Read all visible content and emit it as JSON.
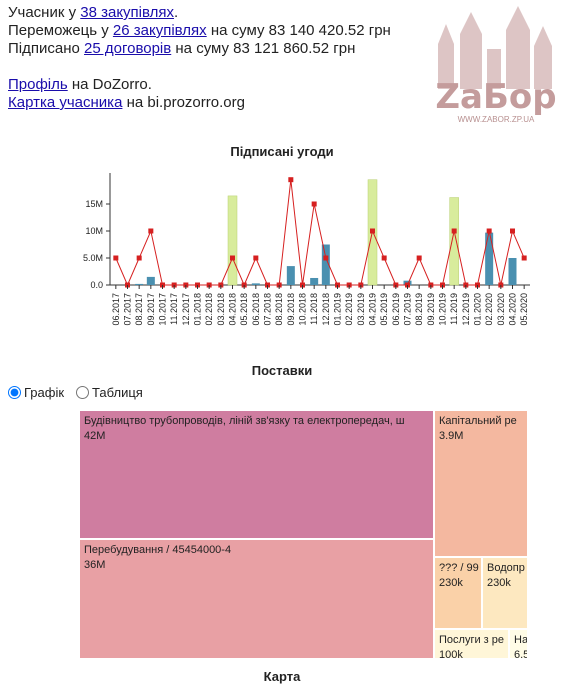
{
  "info": {
    "line1_prefix": "Учасник у ",
    "line1_link": "38 закупівлях",
    "line1_suffix": ".",
    "line2_prefix": "Переможець у ",
    "line2_link": "26 закупівлях",
    "line2_suffix": " на суму 83 140 420.52 грн",
    "line3_prefix": "Підписано ",
    "line3_link": "25 договорів",
    "line3_suffix": " на суму 83 121 860.52 грн",
    "line4_link": "Профіль",
    "line4_suffix": " на DoZorro.",
    "line5_link": "Картка учасника",
    "line5_suffix": " на bi.prozorro.org"
  },
  "logo": {
    "text": "ZaБор",
    "url_text": "WWW.ZABOR.ZP.UA",
    "color": "#c9a9a9"
  },
  "chart_title": "Підписані угоди",
  "chart_data": {
    "type": "bar",
    "categories": [
      "06.2017",
      "07.2017",
      "08.2017",
      "09.2017",
      "10.2017",
      "11.2017",
      "12.2017",
      "01.2018",
      "02.2018",
      "03.2018",
      "04.2018",
      "05.2018",
      "06.2018",
      "07.2018",
      "08.2018",
      "09.2018",
      "10.2018",
      "11.2018",
      "12.2018",
      "01.2019",
      "02.2019",
      "03.2019",
      "04.2019",
      "05.2019",
      "06.2019",
      "07.2019",
      "08.2019",
      "09.2019",
      "10.2019",
      "11.2019",
      "12.2019",
      "01.2020",
      "02.2020",
      "03.2020",
      "04.2020",
      "05.2020"
    ],
    "bar_values": [
      0,
      0,
      0.2,
      1.5,
      0,
      0,
      0,
      0,
      0,
      0,
      0,
      0,
      0.3,
      0,
      0,
      3.5,
      0,
      1.3,
      7.5,
      0,
      0,
      0,
      0,
      0,
      0,
      0.8,
      0,
      0,
      0,
      0,
      0,
      0,
      9.7,
      0,
      5,
      0
    ],
    "highlight_values": [
      0,
      0,
      0,
      0,
      0,
      0,
      0,
      0,
      0,
      0,
      16.5,
      0,
      0,
      0,
      0,
      0,
      0,
      0,
      0,
      0,
      0,
      0,
      19.5,
      0,
      0,
      0,
      0,
      0,
      0,
      16.2,
      0,
      0,
      0,
      0,
      0,
      0
    ],
    "line_values": [
      5,
      0,
      5,
      10,
      0,
      0,
      0,
      0,
      0,
      0,
      5,
      0,
      5,
      0,
      0,
      19.5,
      0,
      15,
      5,
      0,
      0,
      0,
      10,
      5,
      0,
      0,
      5,
      0,
      0,
      10,
      0,
      0,
      10,
      0,
      10,
      5
    ],
    "ylim": [
      0,
      20
    ],
    "yticks": [
      0,
      5,
      10,
      15
    ],
    "ytick_labels": [
      "0.0",
      "5.0M",
      "10M",
      "15M"
    ],
    "colors": {
      "bar": "#4a90b0",
      "highlight": "#d8ec9c",
      "line": "#d62020"
    }
  },
  "supplies_title": "Поставки",
  "toggle": {
    "graph_label": "Графік",
    "table_label": "Таблиця",
    "selected": "graph"
  },
  "treemap": [
    {
      "label": "Будівництво трубопроводів, ліній зв'язку та електропередач, ш",
      "value": "42M",
      "color": "#cf7da0"
    },
    {
      "label": "Перебудування / 45454000-4",
      "value": "36M",
      "color": "#e8a0a4"
    },
    {
      "label": "Капітальний ре",
      "value": "3.9M",
      "color": "#f4b8a0"
    },
    {
      "label": "??? / 99",
      "value": "230k",
      "color": "#fad1a8"
    },
    {
      "label": "Водопр",
      "value": "230k",
      "color": "#fde8c0"
    },
    {
      "label": "Послуги з ре",
      "value": "100k",
      "color": "#fff6d8"
    },
    {
      "label": "На",
      "value": "6.5",
      "color": "#fffce6"
    }
  ],
  "map_title": "Карта"
}
